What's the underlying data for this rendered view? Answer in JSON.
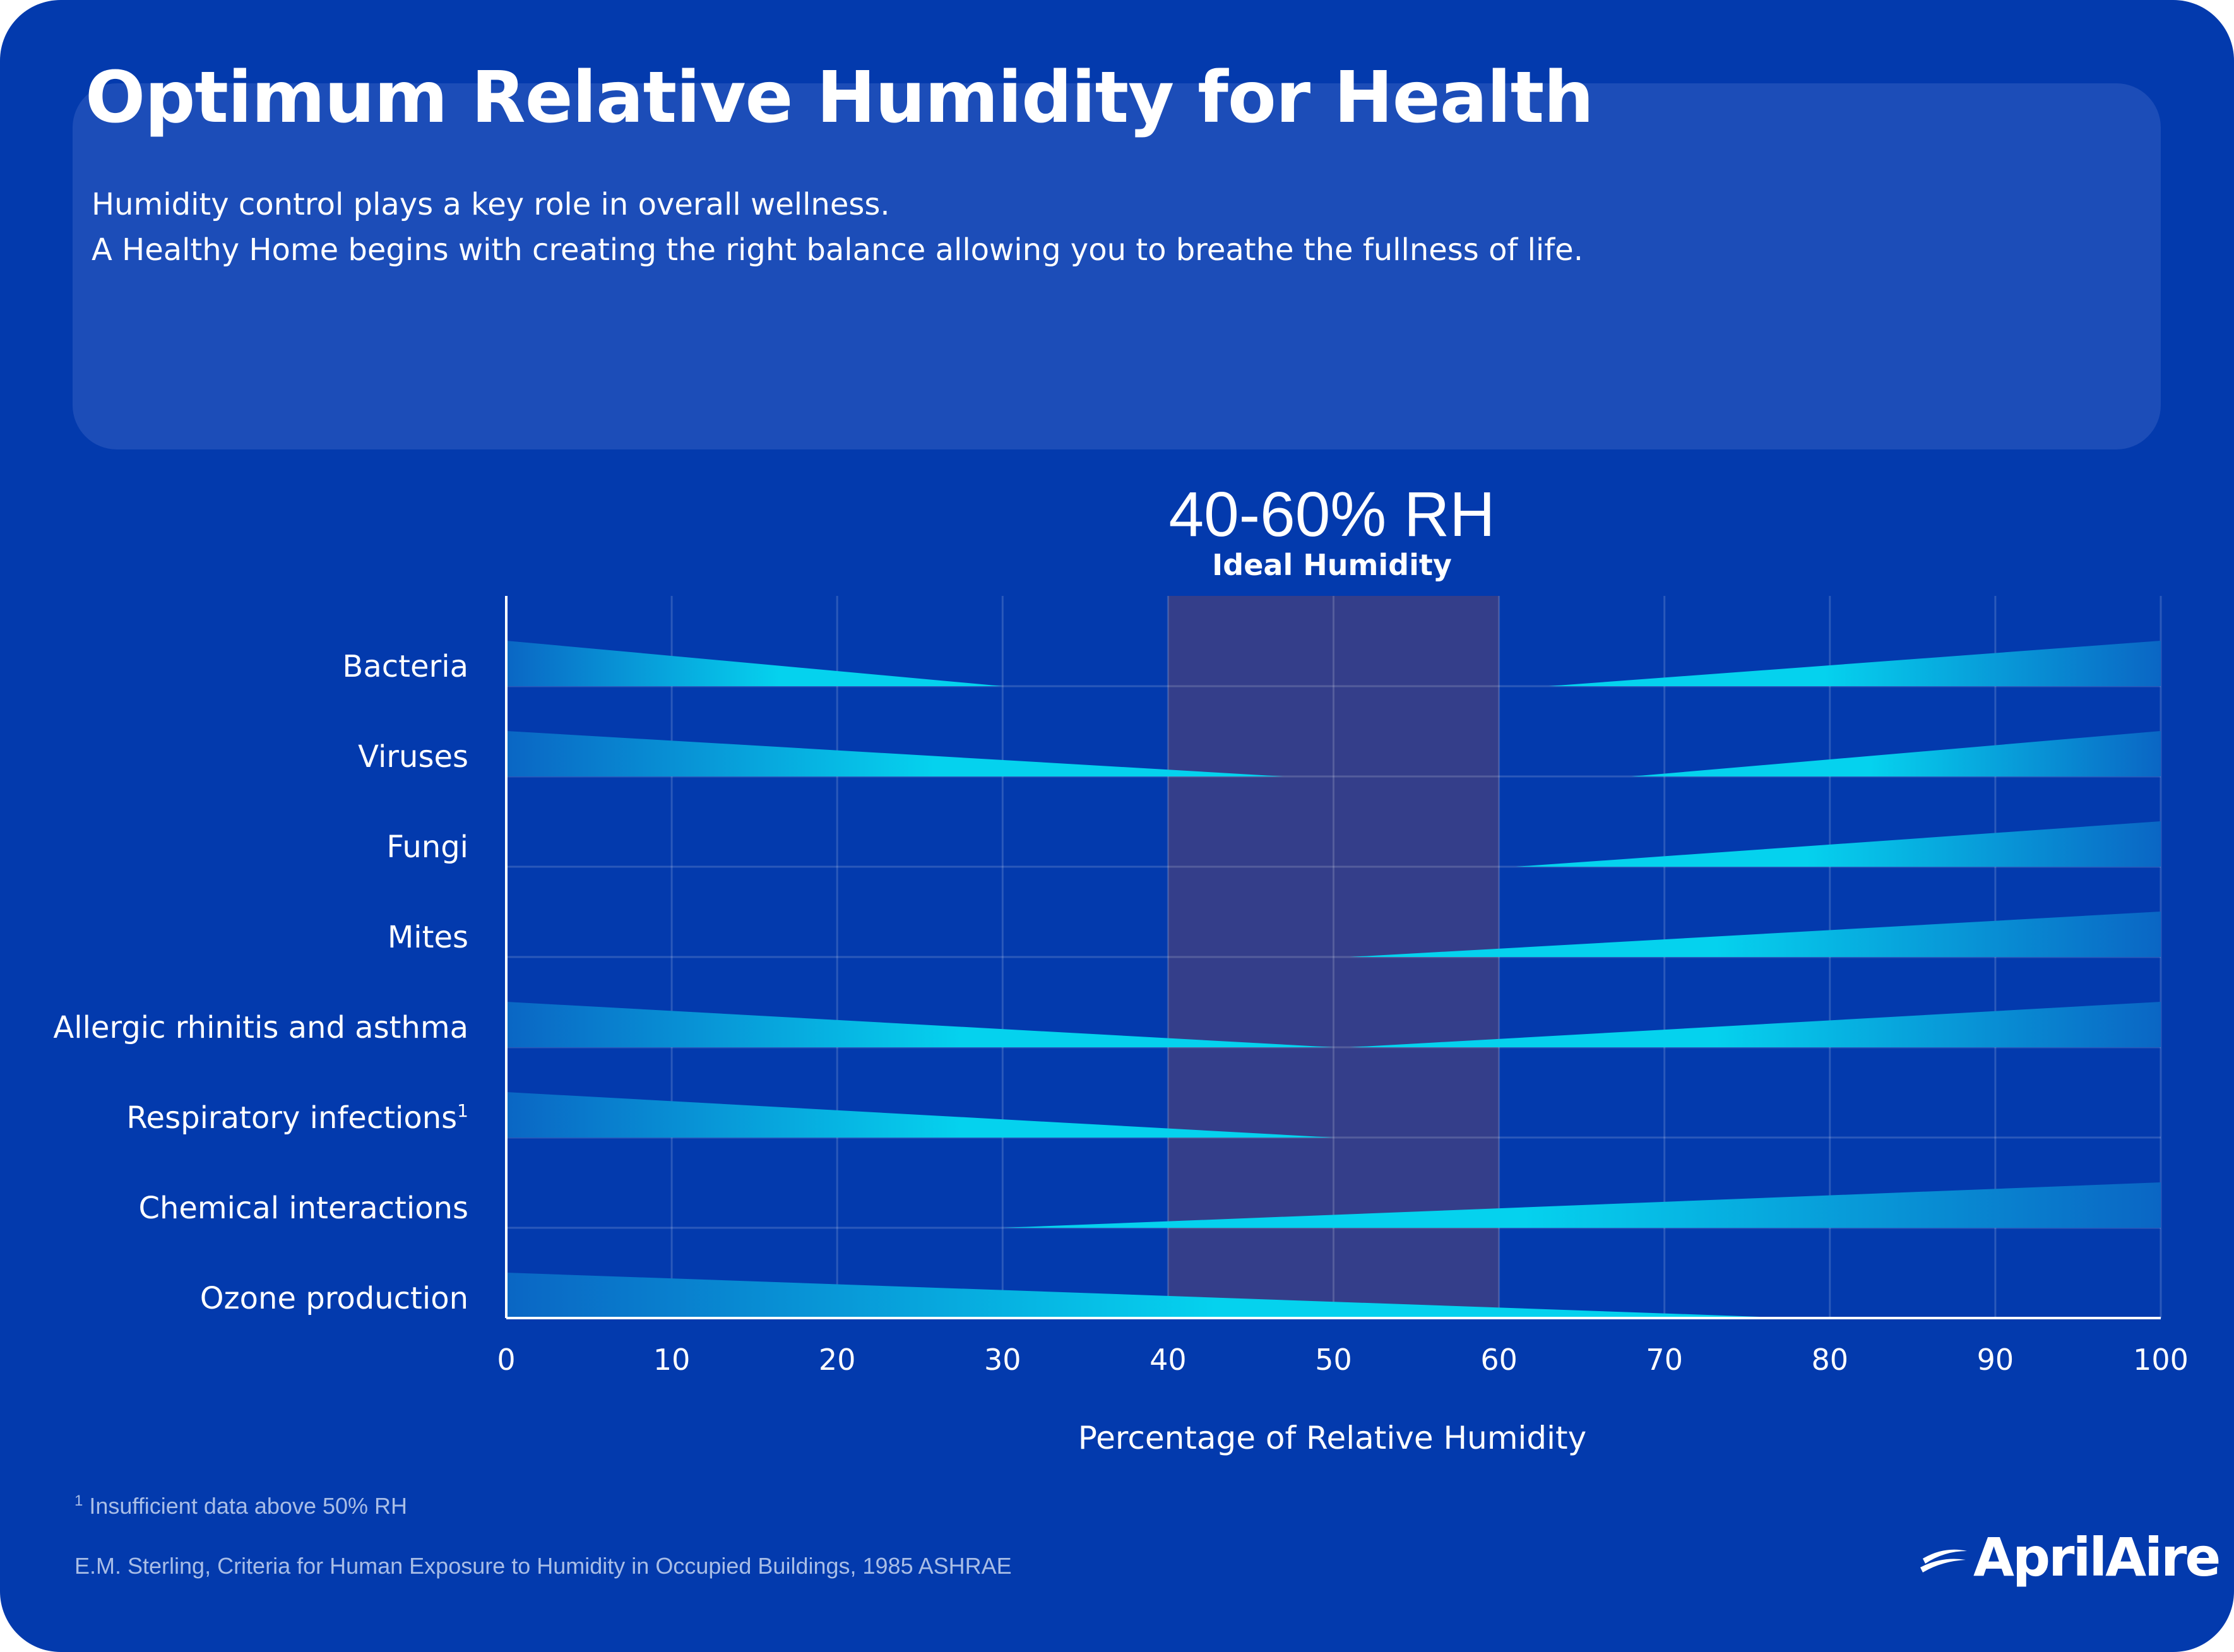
{
  "header": {
    "title": "Optimum Relative Humidity for Health",
    "subtitle_line1": "Humidity control plays a key role in overall wellness.",
    "subtitle_line2": "A Healthy Home begins with creating the right balance allowing you to breathe the fullness of life."
  },
  "ideal": {
    "range_label": "40-60% RH",
    "label": "Ideal Humidity"
  },
  "footer": {
    "footnote_mark": "1",
    "footnote": "Insufficient data above 50% RH",
    "citation": "E.M. Sterling, Criteria for Human Exposure to Humidity in Occupied Buildings, 1985 ASHRAE",
    "logo_text": "AprilAire"
  },
  "colors": {
    "background": "#033aad",
    "header_box": "#1c4db8",
    "ideal_band": "#343e8a",
    "wedge_light": "#05d2ee",
    "wedge_dark": "#0a66c4"
  },
  "chart_data": {
    "type": "range-wedge",
    "xlabel": "Percentage of Relative Humidity",
    "xlim": [
      0,
      100
    ],
    "xticks": [
      "0",
      "10",
      "20",
      "30",
      "40",
      "50",
      "60",
      "70",
      "80",
      "90",
      "100"
    ],
    "ideal_band": [
      40,
      60
    ],
    "categories": [
      {
        "name": "Bacteria",
        "sup": "",
        "ranges": [
          [
            0,
            30,
            "left"
          ],
          [
            63,
            100,
            "right"
          ]
        ]
      },
      {
        "name": "Viruses",
        "sup": "",
        "ranges": [
          [
            0,
            47,
            "left"
          ],
          [
            68,
            100,
            "right"
          ]
        ]
      },
      {
        "name": "Fungi",
        "sup": "",
        "ranges": [
          [
            61,
            100,
            "right"
          ]
        ]
      },
      {
        "name": "Mites",
        "sup": "",
        "ranges": [
          [
            51,
            100,
            "right"
          ]
        ]
      },
      {
        "name": "Allergic rhinitis and asthma",
        "sup": "",
        "ranges": [
          [
            0,
            50,
            "left"
          ],
          [
            51,
            100,
            "right"
          ]
        ]
      },
      {
        "name": "Respiratory infections",
        "sup": "1",
        "ranges": [
          [
            0,
            50,
            "left"
          ]
        ]
      },
      {
        "name": "Chemical interactions",
        "sup": "",
        "ranges": [
          [
            30,
            100,
            "right"
          ]
        ]
      },
      {
        "name": "Ozone production",
        "sup": "",
        "ranges": [
          [
            0,
            78,
            "left"
          ]
        ]
      }
    ]
  }
}
